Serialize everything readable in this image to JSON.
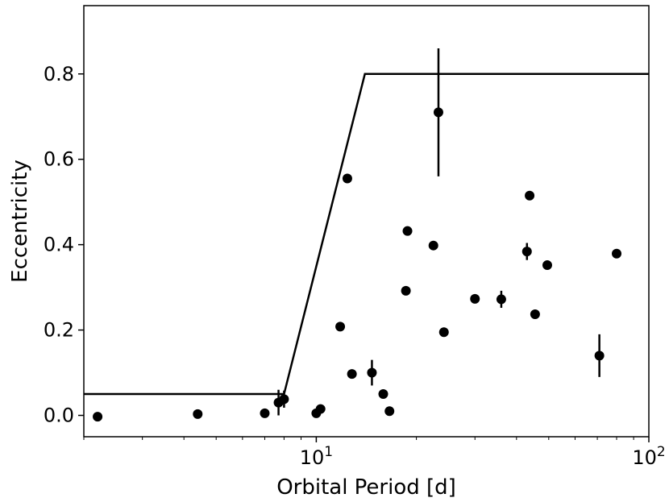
{
  "chart_data": {
    "type": "scatter",
    "title": "",
    "xlabel": "Orbital Period [d]",
    "ylabel": "Eccentricity",
    "xscale": "log",
    "xlim": [
      2,
      100
    ],
    "ylim": [
      -0.05,
      0.96
    ],
    "grid": false,
    "colors": {
      "marker": "#000000",
      "line": "#000000",
      "axes": "#000000"
    },
    "x_ticks": [
      {
        "value": 10,
        "base": "10",
        "exp": "1"
      },
      {
        "value": 100,
        "base": "10",
        "exp": "2"
      }
    ],
    "y_ticks": [
      {
        "value": 0.0,
        "label": "0.0"
      },
      {
        "value": 0.2,
        "label": "0.2"
      },
      {
        "value": 0.4,
        "label": "0.4"
      },
      {
        "value": 0.6,
        "label": "0.6"
      },
      {
        "value": 0.8,
        "label": "0.8"
      }
    ],
    "envelope_line": [
      {
        "x": 2,
        "y": 0.05
      },
      {
        "x": 8.0,
        "y": 0.05
      },
      {
        "x": 14.0,
        "y": 0.8
      },
      {
        "x": 100,
        "y": 0.8
      }
    ],
    "points": [
      {
        "x": 2.2,
        "y": -0.003,
        "yerr": 0
      },
      {
        "x": 4.4,
        "y": 0.003,
        "yerr": 0
      },
      {
        "x": 7.0,
        "y": 0.005,
        "yerr": 0
      },
      {
        "x": 7.7,
        "y": 0.03,
        "yerr": 0.03
      },
      {
        "x": 8.0,
        "y": 0.038,
        "yerr": 0.02
      },
      {
        "x": 10.0,
        "y": 0.005,
        "yerr": 0
      },
      {
        "x": 10.3,
        "y": 0.015,
        "yerr": 0
      },
      {
        "x": 11.8,
        "y": 0.208,
        "yerr": 0
      },
      {
        "x": 12.4,
        "y": 0.555,
        "yerr": 0
      },
      {
        "x": 12.8,
        "y": 0.097,
        "yerr": 0
      },
      {
        "x": 14.7,
        "y": 0.1,
        "yerr": 0.03
      },
      {
        "x": 15.9,
        "y": 0.05,
        "yerr": 0
      },
      {
        "x": 16.6,
        "y": 0.01,
        "yerr": 0
      },
      {
        "x": 18.6,
        "y": 0.292,
        "yerr": 0
      },
      {
        "x": 18.8,
        "y": 0.432,
        "yerr": 0
      },
      {
        "x": 22.5,
        "y": 0.398,
        "yerr": 0
      },
      {
        "x": 23.3,
        "y": 0.71,
        "yerr": 0.15
      },
      {
        "x": 24.2,
        "y": 0.195,
        "yerr": 0
      },
      {
        "x": 30.0,
        "y": 0.273,
        "yerr": 0
      },
      {
        "x": 36.0,
        "y": 0.272,
        "yerr": 0.02
      },
      {
        "x": 43.0,
        "y": 0.384,
        "yerr": 0.02
      },
      {
        "x": 43.8,
        "y": 0.515,
        "yerr": 0
      },
      {
        "x": 45.5,
        "y": 0.237,
        "yerr": 0.01
      },
      {
        "x": 49.5,
        "y": 0.352,
        "yerr": 0
      },
      {
        "x": 71.0,
        "y": 0.14,
        "yerr": 0.05
      },
      {
        "x": 80.0,
        "y": 0.379,
        "yerr": 0
      }
    ]
  }
}
